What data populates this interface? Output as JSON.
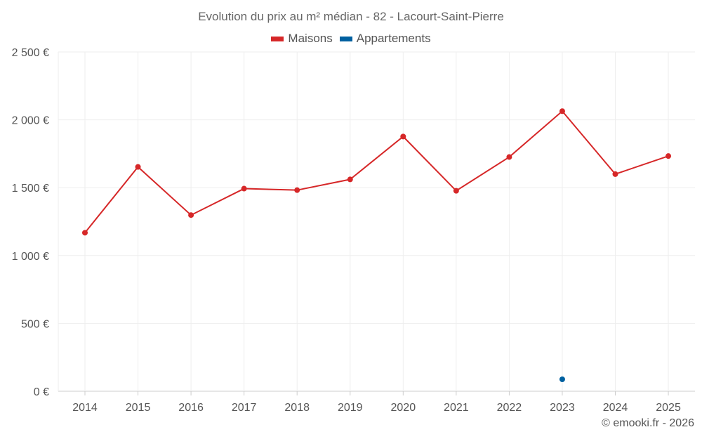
{
  "chart_data": {
    "type": "line",
    "title": "Evolution du prix au m² médian - 82 - Lacourt-Saint-Pierre",
    "categories": [
      "2014",
      "2015",
      "2016",
      "2017",
      "2018",
      "2019",
      "2020",
      "2021",
      "2022",
      "2023",
      "2024",
      "2025"
    ],
    "y_ticks": [
      0,
      500,
      1000,
      1500,
      2000,
      2500
    ],
    "y_tick_labels": [
      "0 €",
      "500 €",
      "1 000 €",
      "1 500 €",
      "2 000 €",
      "2 500 €"
    ],
    "ylim": [
      0,
      2500
    ],
    "grid": true,
    "legend_position": "top-center",
    "series": [
      {
        "name": "Maisons",
        "color": "#d62728",
        "values": [
          1168,
          1653,
          1298,
          1493,
          1482,
          1561,
          1877,
          1477,
          1726,
          2064,
          1600,
          1733
        ]
      },
      {
        "name": "Appartements",
        "color": "#0060a0",
        "values": [
          null,
          null,
          null,
          null,
          null,
          null,
          null,
          null,
          null,
          88,
          null,
          null
        ]
      }
    ],
    "credit": "© emooki.fr - 2026"
  }
}
